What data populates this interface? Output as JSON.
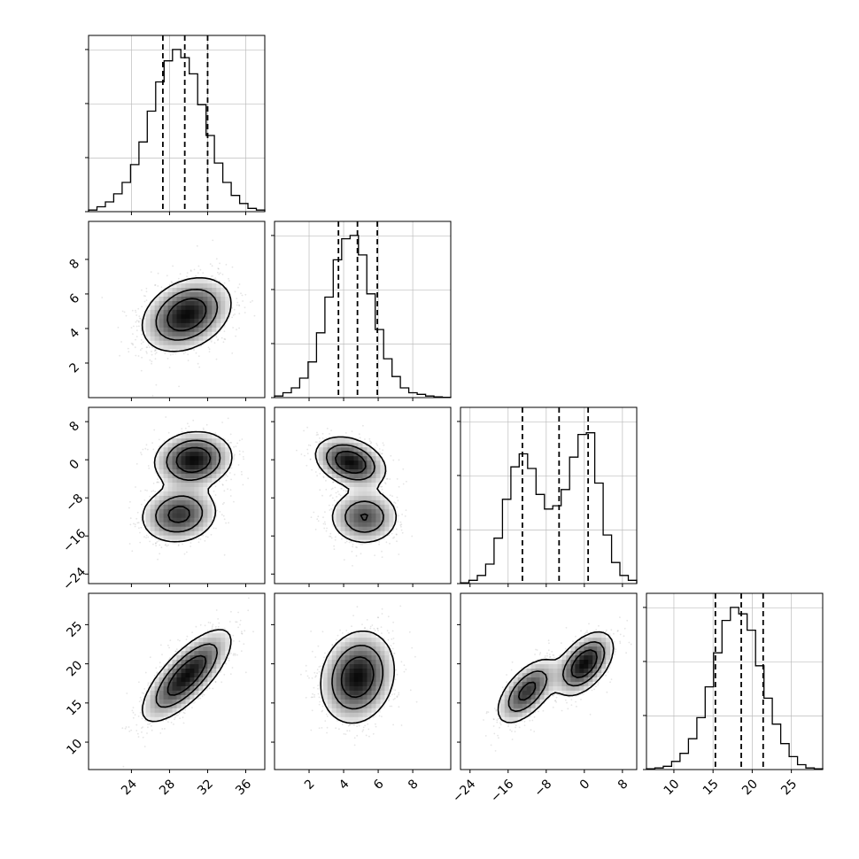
{
  "chart_data": {
    "type": "corner",
    "title": "",
    "grid": true,
    "parameters": [
      {
        "range": [
          19.5,
          38.0
        ],
        "ticks": [
          24,
          28,
          32,
          36
        ],
        "tick_labels": [
          "24",
          "28",
          "32",
          "36"
        ],
        "quantiles": [
          27.3,
          29.6,
          32.0
        ],
        "mode": "unimodal",
        "center": 29.8,
        "sigma": 2.3
      },
      {
        "range": [
          0.0,
          10.2
        ],
        "ticks": [
          2,
          4,
          6,
          8
        ],
        "tick_labels": [
          "2",
          "4",
          "6",
          "8"
        ],
        "quantiles": [
          3.7,
          4.8,
          5.95
        ],
        "mode": "unimodal",
        "center": 4.8,
        "sigma": 1.05
      },
      {
        "range": [
          -26.0,
          11.0
        ],
        "ticks": [
          -24,
          -16,
          -8,
          0,
          8
        ],
        "tick_labels": [
          "−24",
          "−16",
          "−8",
          "0",
          "8"
        ],
        "quantiles": [
          -13.0,
          -5.3,
          0.8
        ],
        "mode": "bimodal",
        "peaks": [
          -11.5,
          0.0
        ],
        "sigma": 3.5
      },
      {
        "range": [
          6.5,
          29.0
        ],
        "ticks": [
          10,
          15,
          20,
          25
        ],
        "tick_labels": [
          "10",
          "15",
          "20",
          "25"
        ],
        "quantiles": [
          15.3,
          18.6,
          21.4
        ],
        "mode": "unimodal",
        "center": 18.5,
        "sigma": 2.9
      }
    ],
    "histograms": [
      [
        0.01,
        0.03,
        0.06,
        0.11,
        0.18,
        0.29,
        0.43,
        0.62,
        0.8,
        0.93,
        1.0,
        0.95,
        0.85,
        0.66,
        0.47,
        0.3,
        0.18,
        0.1,
        0.05,
        0.02,
        0.01
      ],
      [
        0.01,
        0.03,
        0.06,
        0.12,
        0.22,
        0.4,
        0.62,
        0.85,
        0.98,
        1.0,
        0.88,
        0.64,
        0.42,
        0.24,
        0.13,
        0.06,
        0.03,
        0.02,
        0.01,
        0.005,
        0.002
      ],
      [
        0.005,
        0.02,
        0.05,
        0.12,
        0.28,
        0.52,
        0.72,
        0.8,
        0.71,
        0.55,
        0.46,
        0.48,
        0.58,
        0.78,
        0.92,
        0.93,
        0.62,
        0.3,
        0.13,
        0.05,
        0.02
      ],
      [
        0.005,
        0.01,
        0.02,
        0.05,
        0.1,
        0.19,
        0.32,
        0.51,
        0.72,
        0.92,
        1.0,
        0.96,
        0.86,
        0.64,
        0.44,
        0.28,
        0.16,
        0.08,
        0.03,
        0.01,
        0.005
      ]
    ],
    "pairs": [
      {
        "x": 0,
        "y": 1,
        "blobs": [
          {
            "cx": 29.8,
            "cy": 4.8,
            "sx": 2.3,
            "sy": 1.05,
            "rho": 0.3,
            "w": 1
          }
        ]
      },
      {
        "x": 0,
        "y": 2,
        "blobs": [
          {
            "cx": 30.5,
            "cy": 0.0,
            "sx": 2.0,
            "sy": 2.9,
            "rho": 0.1,
            "w": 0.55
          },
          {
            "cx": 29.0,
            "cy": -11.5,
            "sx": 2.0,
            "sy": 3.0,
            "rho": 0.1,
            "w": 0.45
          }
        ]
      },
      {
        "x": 1,
        "y": 2,
        "blobs": [
          {
            "cx": 4.4,
            "cy": -0.5,
            "sx": 1.0,
            "sy": 2.6,
            "rho": -0.3,
            "w": 0.55
          },
          {
            "cx": 5.2,
            "cy": -12.0,
            "sx": 1.0,
            "sy": 2.9,
            "rho": 0.0,
            "w": 0.45
          }
        ]
      },
      {
        "x": 0,
        "y": 3,
        "blobs": [
          {
            "cx": 29.8,
            "cy": 18.5,
            "sx": 2.3,
            "sy": 2.9,
            "rho": 0.75,
            "w": 1
          }
        ]
      },
      {
        "x": 1,
        "y": 3,
        "blobs": [
          {
            "cx": 4.8,
            "cy": 18.3,
            "sx": 1.05,
            "sy": 2.9,
            "rho": 0.15,
            "w": 1
          }
        ]
      },
      {
        "x": 2,
        "y": 3,
        "blobs": [
          {
            "cx": 0.0,
            "cy": 20.0,
            "sx": 3.0,
            "sy": 2.0,
            "rho": 0.5,
            "w": 0.55
          },
          {
            "cx": -12.0,
            "cy": 16.5,
            "sx": 3.2,
            "sy": 2.1,
            "rho": 0.6,
            "w": 0.45
          }
        ]
      }
    ],
    "colors": {
      "points": "#888888",
      "contour": "#000000",
      "quantile_line": "#000000",
      "grid": "#bdbdbd",
      "axes": "#000000"
    }
  }
}
